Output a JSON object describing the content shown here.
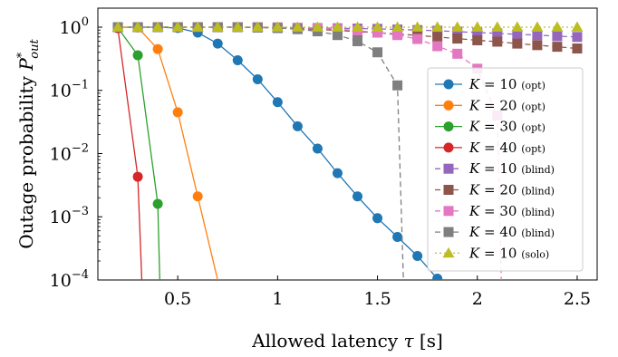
{
  "chart_data": {
    "type": "line",
    "xlabel": "Allowed latency τ [s]",
    "ylabel": "Outage probability P*out",
    "ylabel_parts": {
      "main": "Outage probability ",
      "symbol": "P",
      "sup": "*",
      "sub": "out"
    },
    "xlabel_parts": {
      "main": "Allowed latency ",
      "symbol": "τ",
      "unit": " [s]"
    },
    "xlim": [
      0.1,
      2.6
    ],
    "ylim": [
      0.0001,
      2
    ],
    "yscale": "log",
    "xticks": [
      0.5,
      1,
      1.5,
      2,
      2.5
    ],
    "xtick_labels": [
      "0.5",
      "1",
      "1.5",
      "2",
      "2.5"
    ],
    "yticks": [
      1,
      0.1,
      0.01,
      0.001,
      0.0001
    ],
    "ytick_labels": [
      {
        "base": "10",
        "exp": "0"
      },
      {
        "base": "10",
        "exp": "−1"
      },
      {
        "base": "10",
        "exp": "−2"
      },
      {
        "base": "10",
        "exp": "−3"
      },
      {
        "base": "10",
        "exp": "−4"
      }
    ],
    "grid": false,
    "legend_position": "right",
    "series": [
      {
        "name": "K = 10 (opt)",
        "legend_label": {
          "k": "K",
          "eq": " = 10",
          "tag": "(opt)"
        },
        "color": "#1f77b4",
        "marker": "circle",
        "dashed": false,
        "x": [
          0.2,
          0.3,
          0.4,
          0.5,
          0.6,
          0.7,
          0.8,
          0.9,
          1.0,
          1.1,
          1.2,
          1.3,
          1.4,
          1.5,
          1.6,
          1.7,
          1.8
        ],
        "y": [
          1.0,
          1.0,
          1.0,
          0.97,
          0.82,
          0.55,
          0.3,
          0.15,
          0.065,
          0.027,
          0.012,
          0.0049,
          0.0021,
          0.00095,
          0.00048,
          0.00024,
          0.000105
        ]
      },
      {
        "name": "K = 20 (opt)",
        "legend_label": {
          "k": "K",
          "eq": " = 20",
          "tag": "(opt)"
        },
        "color": "#ff7f0e",
        "marker": "circle",
        "dashed": false,
        "x": [
          0.2,
          0.3,
          0.4,
          0.5,
          0.6,
          0.7
        ],
        "y": [
          1.0,
          0.99,
          0.45,
          0.045,
          0.0021,
          0.0001
        ]
      },
      {
        "name": "K = 30 (opt)",
        "legend_label": {
          "k": "K",
          "eq": " = 30",
          "tag": "(opt)"
        },
        "color": "#2ca02c",
        "marker": "circle",
        "dashed": false,
        "x": [
          0.2,
          0.3,
          0.4,
          0.41
        ],
        "y": [
          0.98,
          0.36,
          0.0016,
          0.0001
        ]
      },
      {
        "name": "K = 40 (opt)",
        "legend_label": {
          "k": "K",
          "eq": " = 40",
          "tag": "(opt)"
        },
        "color": "#d62728",
        "marker": "circle",
        "dashed": false,
        "x": [
          0.2,
          0.3,
          0.32
        ],
        "y": [
          0.96,
          0.0043,
          0.0001
        ]
      },
      {
        "name": "K = 10 (blind)",
        "legend_label": {
          "k": "K",
          "eq": " = 10",
          "tag": "(blind)"
        },
        "color": "#9467bd",
        "marker": "square",
        "dashed": true,
        "x": [
          0.2,
          0.3,
          0.4,
          0.5,
          0.6,
          0.7,
          0.8,
          0.9,
          1.0,
          1.1,
          1.2,
          1.3,
          1.4,
          1.5,
          1.6,
          1.7,
          1.8,
          1.9,
          2.0,
          2.1,
          2.2,
          2.3,
          2.4,
          2.5
        ],
        "y": [
          1.0,
          1.0,
          1.0,
          1.0,
          1.0,
          1.0,
          1.0,
          1.0,
          0.99,
          0.98,
          0.97,
          0.96,
          0.95,
          0.94,
          0.92,
          0.9,
          0.88,
          0.85,
          0.82,
          0.8,
          0.77,
          0.75,
          0.72,
          0.7
        ]
      },
      {
        "name": "K = 20 (blind)",
        "legend_label": {
          "k": "K",
          "eq": " = 20",
          "tag": "(blind)"
        },
        "color": "#8c564b",
        "marker": "square",
        "dashed": true,
        "x": [
          0.2,
          0.3,
          0.4,
          0.5,
          0.6,
          0.7,
          0.8,
          0.9,
          1.0,
          1.1,
          1.2,
          1.3,
          1.4,
          1.5,
          1.6,
          1.7,
          1.8,
          1.9,
          2.0,
          2.1,
          2.2,
          2.3,
          2.4,
          2.5
        ],
        "y": [
          1.0,
          1.0,
          1.0,
          1.0,
          1.0,
          1.0,
          1.0,
          0.99,
          0.97,
          0.95,
          0.92,
          0.89,
          0.85,
          0.82,
          0.78,
          0.74,
          0.7,
          0.66,
          0.62,
          0.59,
          0.55,
          0.52,
          0.49,
          0.46
        ]
      },
      {
        "name": "K = 30 (blind)",
        "legend_label": {
          "k": "K",
          "eq": " = 30",
          "tag": "(blind)"
        },
        "color": "#e377c2",
        "marker": "square",
        "dashed": true,
        "x": [
          0.2,
          0.3,
          0.4,
          0.5,
          0.6,
          0.7,
          0.8,
          0.9,
          1.0,
          1.1,
          1.2,
          1.3,
          1.4,
          1.5,
          1.6,
          1.7,
          1.8,
          1.9,
          2.0,
          2.1,
          2.12
        ],
        "y": [
          1.0,
          1.0,
          1.0,
          1.0,
          1.0,
          1.0,
          1.0,
          1.0,
          0.99,
          0.98,
          0.96,
          0.93,
          0.88,
          0.82,
          0.75,
          0.65,
          0.5,
          0.38,
          0.22,
          0.04,
          0.0001
        ]
      },
      {
        "name": "K = 40 (blind)",
        "legend_label": {
          "k": "K",
          "eq": " = 40",
          "tag": "(blind)"
        },
        "color": "#7f7f7f",
        "marker": "square",
        "dashed": true,
        "x": [
          0.2,
          0.3,
          0.4,
          0.5,
          0.6,
          0.7,
          0.8,
          0.9,
          1.0,
          1.1,
          1.2,
          1.3,
          1.4,
          1.5,
          1.6,
          1.63
        ],
        "y": [
          1.0,
          1.0,
          1.0,
          1.0,
          1.0,
          1.0,
          1.0,
          0.99,
          0.97,
          0.93,
          0.86,
          0.75,
          0.6,
          0.4,
          0.12,
          0.0001
        ]
      },
      {
        "name": "K = 10 (solo)",
        "legend_label": {
          "k": "K",
          "eq": " = 10",
          "tag": "(solo)"
        },
        "color": "#bcbd22",
        "marker": "triangle",
        "dashed": "dotted",
        "x": [
          0.2,
          0.3,
          0.4,
          0.5,
          0.6,
          0.7,
          0.8,
          0.9,
          1.0,
          1.1,
          1.2,
          1.3,
          1.4,
          1.5,
          1.6,
          1.7,
          1.8,
          1.9,
          2.0,
          2.1,
          2.2,
          2.3,
          2.4,
          2.5
        ],
        "y": [
          1.0,
          1.0,
          1.0,
          1.0,
          1.0,
          1.0,
          1.0,
          1.0,
          1.0,
          1.0,
          1.0,
          1.0,
          1.0,
          1.0,
          1.0,
          1.0,
          1.0,
          1.0,
          1.0,
          1.0,
          1.0,
          1.0,
          1.0,
          1.0
        ]
      }
    ]
  }
}
